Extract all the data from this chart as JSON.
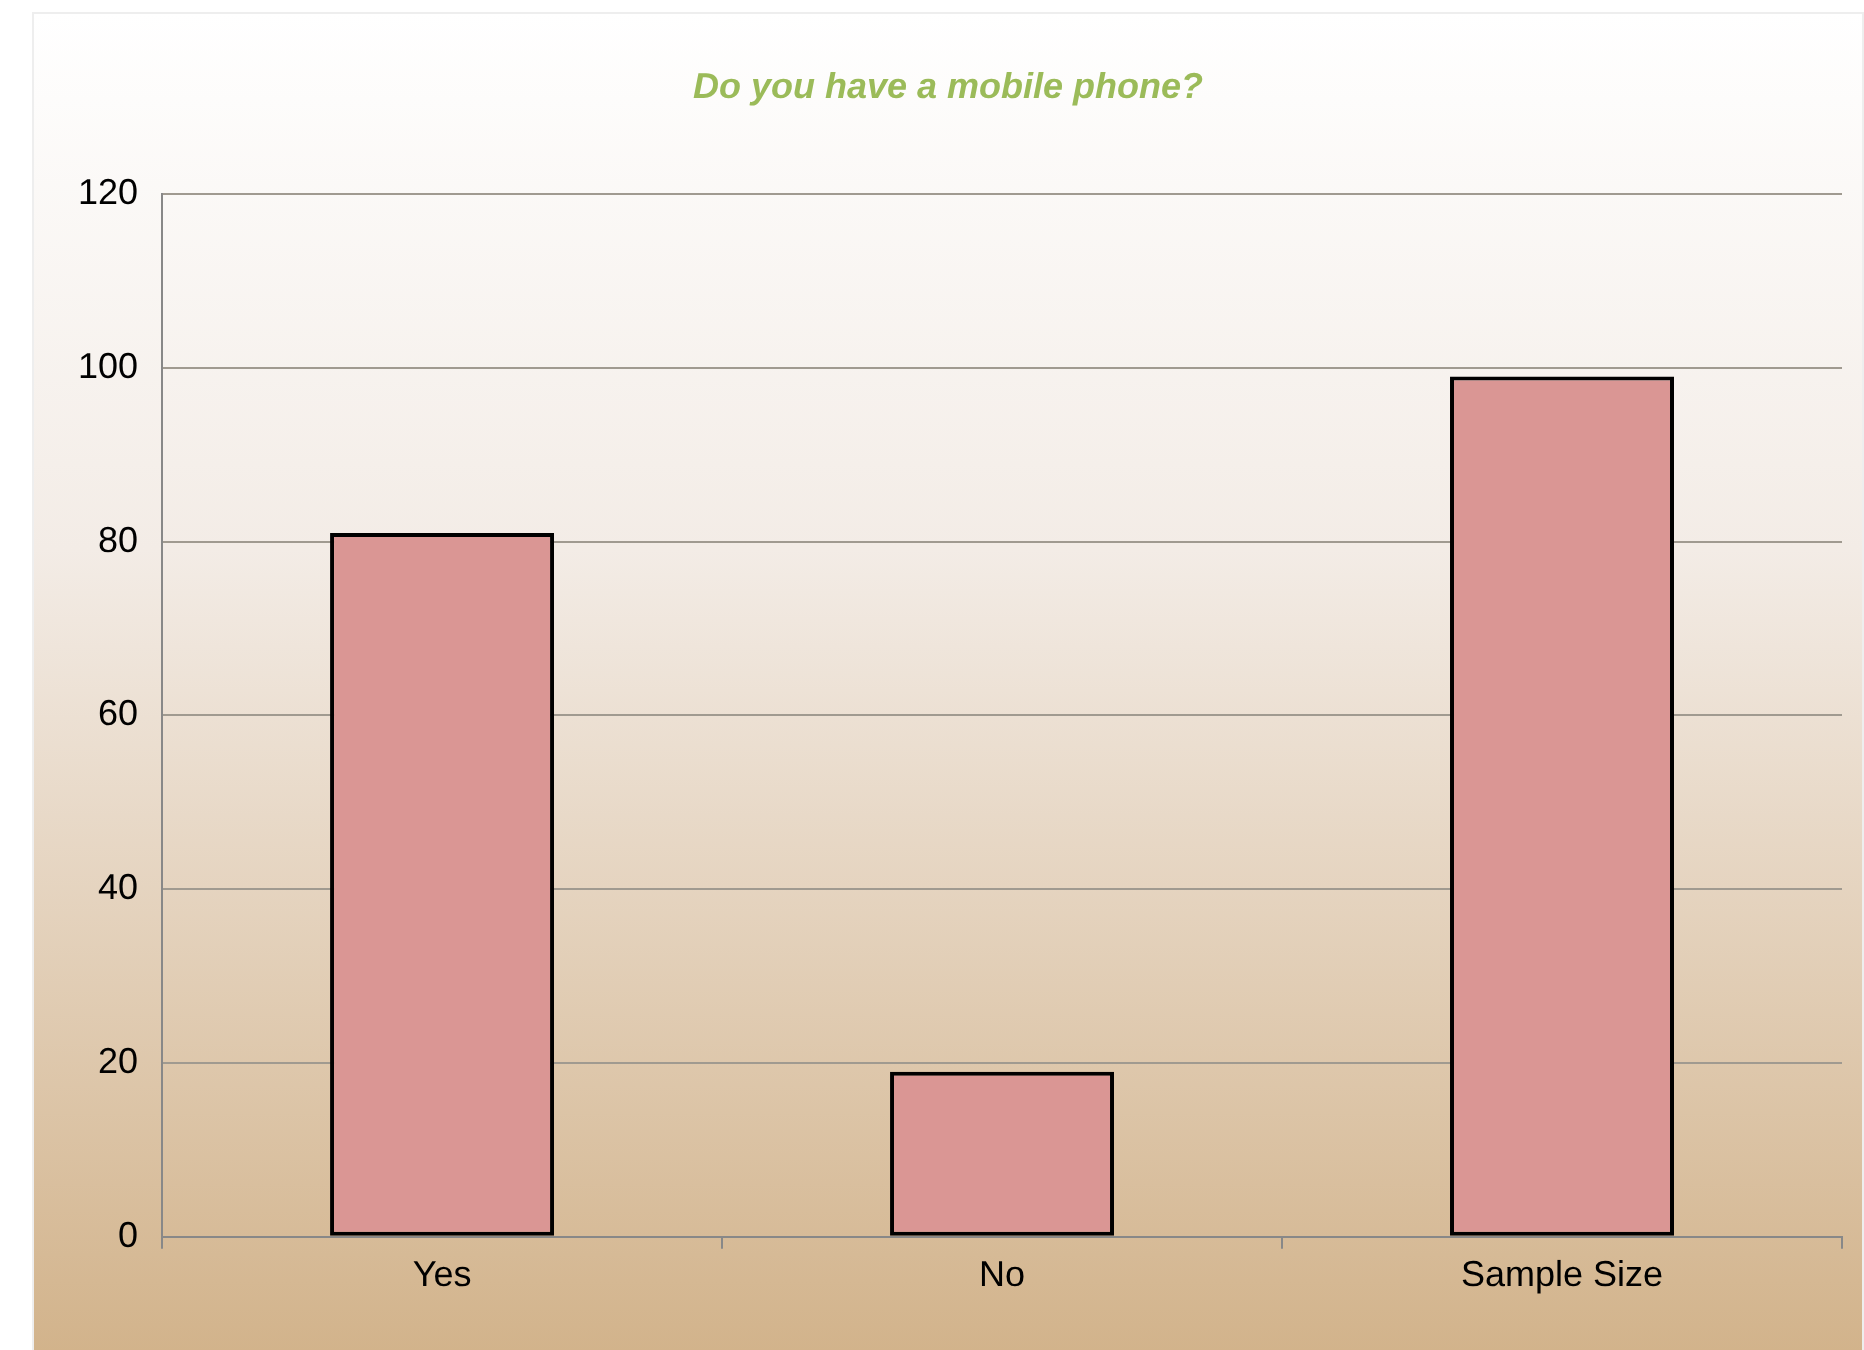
{
  "chart_data": {
    "type": "bar",
    "title": "Do you have a mobile phone?",
    "categories": [
      "Yes",
      "No",
      "Sample Size"
    ],
    "values": [
      81,
      19,
      99
    ],
    "color": "#da9694",
    "ylim": [
      0,
      120
    ],
    "yticks": [
      0,
      20,
      40,
      60,
      80,
      100,
      120
    ],
    "grid": "y",
    "legend": false
  }
}
